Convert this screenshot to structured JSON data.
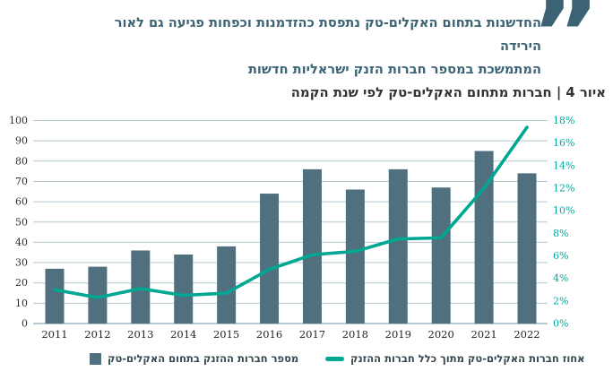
{
  "pull_quote": {
    "mark": "”",
    "lines": [
      "החדשנות בתחום האקלים-טק נתפסת כהזדמנות וכפחות פגיעה גם לאור הירידה",
      "המתמשכת במספר חברות הזנק ישראליות חדשות"
    ]
  },
  "figure_title": "איור 4 | חברות מתחום האקלים-טק לפי שנת הקמה",
  "chart_data": {
    "type": "bar",
    "combo": "bar+line",
    "title": "איור 4 | חברות מתחום האקלים-טק לפי שנת הקמה",
    "categories": [
      "2011",
      "2012",
      "2013",
      "2014",
      "2015",
      "2016",
      "2017",
      "2018",
      "2019",
      "2020",
      "2021",
      "2022"
    ],
    "series": [
      {
        "name": "מספר חברות ההזנק בתחום האקלים-טק",
        "type": "bar",
        "axis": "left",
        "color": "#51707f",
        "values": [
          27,
          28,
          36,
          34,
          38,
          64,
          76,
          66,
          76,
          67,
          85,
          74
        ]
      },
      {
        "name": "אחוז חברות האקלים-טק מתוך כלל חברות ההזנק",
        "type": "line",
        "axis": "right",
        "color": "#00a792",
        "values": [
          3.0,
          2.3,
          3.1,
          2.5,
          2.7,
          4.8,
          6.1,
          6.4,
          7.5,
          7.6,
          12.0,
          17.4
        ]
      }
    ],
    "left_axis": {
      "min": 0,
      "max": 100,
      "step": 10,
      "tick_labels": [
        "0",
        "10",
        "20",
        "30",
        "40",
        "50",
        "60",
        "70",
        "80",
        "90",
        "100"
      ]
    },
    "right_axis": {
      "min": 0,
      "max": 18,
      "step": 2,
      "tick_labels": [
        "0%",
        "2%",
        "4%",
        "6%",
        "8%",
        "10%",
        "12%",
        "14%",
        "16%",
        "18%"
      ]
    },
    "grid": "horizontal",
    "legend_position": "bottom"
  },
  "colors": {
    "bar": "#51707f",
    "line": "#00a792",
    "right_axis_text": "#00a79a",
    "left_axis_text": "#2f2f2f",
    "gridline": "#b5c7cf",
    "baseline": "#9db5bf",
    "headline_text": "#3d6474",
    "quote_mark": "#3c6374",
    "title_text": "#333333",
    "legend_text": "#37474f"
  }
}
